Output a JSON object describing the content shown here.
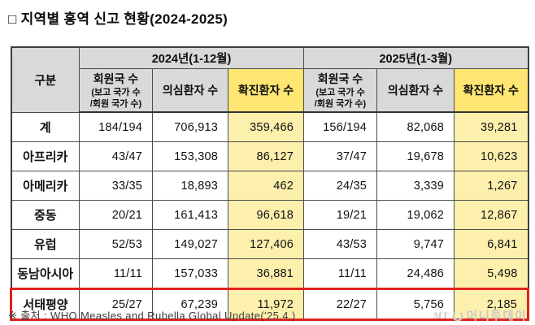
{
  "page": {
    "title": "□ 지역별 홍역 신고 현황(2024-2025)",
    "footnote": "※ 출처 : WHO Measles and Rubella Global Update('25.4.)"
  },
  "logo": {
    "mt": "MT",
    "name": "머니투데이"
  },
  "colors": {
    "header_gray": "#d9d9d9",
    "header_yellow": "#ffe572",
    "cell_yellow": "#fdf0ad",
    "highlight_red": "#e0231f"
  },
  "chart_data": {
    "type": "table",
    "title": "지역별 홍역 신고 현황(2024-2025)",
    "header": {
      "corner": "구분",
      "member_sub": "(보고 국가 수\n/회원 국가 수)",
      "groups": [
        {
          "label": "2024년(1-12월)",
          "columns": [
            "회원국 수",
            "의심환자 수",
            "확진환자 수"
          ]
        },
        {
          "label": "2025년(1-3월)",
          "columns": [
            "회원국 수",
            "의심환자 수",
            "확진환자 수"
          ]
        }
      ]
    },
    "rows": [
      {
        "label": "계",
        "values": [
          "184/194",
          "706,913",
          "359,466",
          "156/194",
          "82,068",
          "39,281"
        ],
        "highlight": false
      },
      {
        "label": "아프리카",
        "values": [
          "43/47",
          "153,308",
          "86,127",
          "37/47",
          "19,678",
          "10,623"
        ],
        "highlight": false
      },
      {
        "label": "아메리카",
        "values": [
          "33/35",
          "18,893",
          "462",
          "24/35",
          "3,339",
          "1,267"
        ],
        "highlight": false
      },
      {
        "label": "중동",
        "values": [
          "20/21",
          "161,413",
          "96,618",
          "19/21",
          "19,062",
          "12,867"
        ],
        "highlight": false
      },
      {
        "label": "유럽",
        "values": [
          "52/53",
          "149,027",
          "127,406",
          "43/53",
          "9,747",
          "6,841"
        ],
        "highlight": false
      },
      {
        "label": "동남아시아",
        "values": [
          "11/11",
          "157,033",
          "36,881",
          "11/11",
          "24,486",
          "5,498"
        ],
        "highlight": false
      },
      {
        "label": "서태평양",
        "values": [
          "25/27",
          "67,239",
          "11,972",
          "22/27",
          "5,756",
          "2,185"
        ],
        "highlight": true
      }
    ]
  }
}
